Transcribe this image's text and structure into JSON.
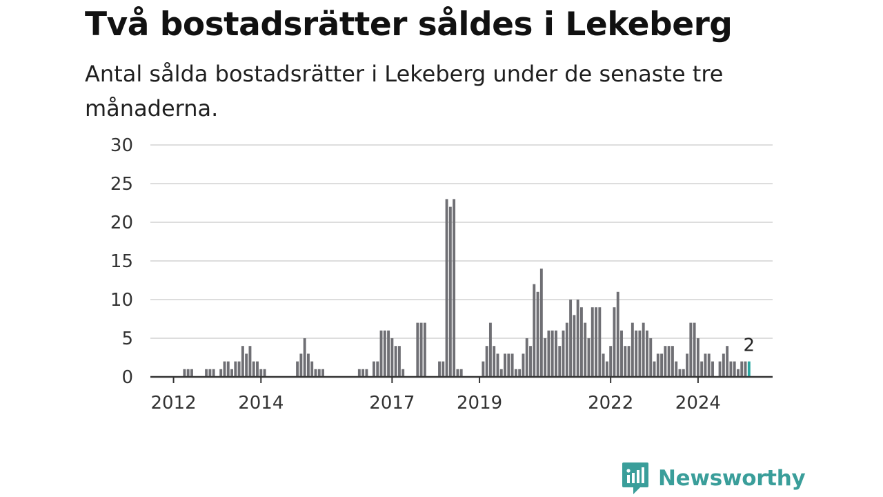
{
  "title": "Två bostadsrätter såldes i Lekeberg",
  "subtitle": "Antal sålda bostadsrätter i Lekeberg under de senaste tre månaderna.",
  "brand": {
    "name": "Newsworthy",
    "icon": "newsworthy-logo-icon"
  },
  "colors": {
    "bar": "#6f6f74",
    "highlight": "#2aa7a1",
    "grid": "#dddddd",
    "axis": "#333333",
    "brand": "#3a9e9a"
  },
  "chart_data": {
    "type": "bar",
    "title": "Två bostadsrätter såldes i Lekeberg",
    "xlabel": "",
    "ylabel": "",
    "ylim": [
      0,
      30
    ],
    "yticks": [
      "0",
      "5",
      "10",
      "15",
      "20",
      "25",
      "30"
    ],
    "xticks": [
      {
        "label": "2012",
        "index": 4
      },
      {
        "label": "2014",
        "index": 28
      },
      {
        "label": "2017",
        "index": 64
      },
      {
        "label": "2019",
        "index": 88
      },
      {
        "label": "2022",
        "index": 124
      },
      {
        "label": "2024",
        "index": 148
      }
    ],
    "grid": true,
    "highlight_last": true,
    "last_value_label": "2",
    "values": [
      0,
      0,
      0,
      0,
      0,
      0,
      0,
      1,
      1,
      1,
      0,
      0,
      0,
      1,
      1,
      1,
      0,
      1,
      2,
      2,
      1,
      2,
      2,
      4,
      3,
      4,
      2,
      2,
      1,
      1,
      0,
      0,
      0,
      0,
      0,
      0,
      0,
      0,
      2,
      3,
      5,
      3,
      2,
      1,
      1,
      1,
      0,
      0,
      0,
      0,
      0,
      0,
      0,
      0,
      0,
      1,
      1,
      1,
      0,
      2,
      2,
      6,
      6,
      6,
      5,
      4,
      4,
      1,
      0,
      0,
      0,
      7,
      7,
      7,
      0,
      0,
      0,
      2,
      2,
      23,
      22,
      23,
      1,
      1,
      0,
      0,
      0,
      0,
      0,
      2,
      4,
      7,
      4,
      3,
      1,
      3,
      3,
      3,
      1,
      1,
      3,
      5,
      4,
      12,
      11,
      14,
      5,
      6,
      6,
      6,
      4,
      6,
      7,
      10,
      8,
      10,
      9,
      7,
      5,
      9,
      9,
      9,
      3,
      2,
      4,
      9,
      11,
      6,
      4,
      4,
      7,
      6,
      6,
      7,
      6,
      5,
      2,
      3,
      3,
      4,
      4,
      4,
      2,
      1,
      1,
      3,
      7,
      7,
      5,
      2,
      3,
      3,
      2,
      0,
      2,
      3,
      4,
      2,
      2,
      1,
      2,
      2,
      2
    ]
  }
}
